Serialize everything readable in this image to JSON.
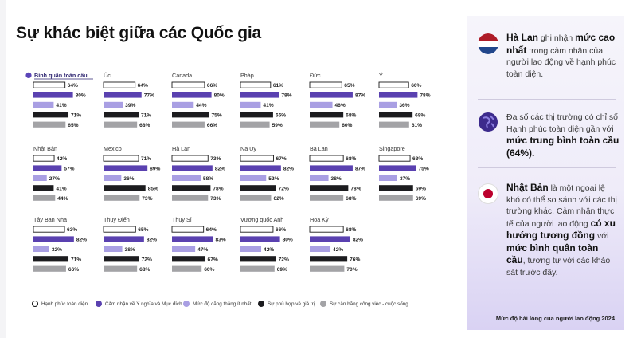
{
  "title": "Sự khác biệt giữa các Quốc gia",
  "series_colors": [
    "#ffffff",
    "#5a41b0",
    "#a99fe3",
    "#1c1c1f",
    "#a3a3a6"
  ],
  "legend": [
    {
      "label": "Hạnh phúc toàn diện"
    },
    {
      "label": "Cảm nhận về Ý nghĩa và Mục đích"
    },
    {
      "label": "Mức độ căng thẳng ít nhất"
    },
    {
      "label": "Sự phù hợp về giá trị"
    },
    {
      "label": "Sự cân bằng công việc - cuộc sống"
    }
  ],
  "chart_data": {
    "type": "bar",
    "orientation": "horizontal",
    "layout": "small multiples, 6 per row",
    "xlim": [
      0,
      100
    ],
    "series": [
      "Hạnh phúc toàn diện",
      "Cảm nhận về Ý nghĩa và Mục đích",
      "Mức độ căng thẳng ít nhất",
      "Sự phù hợp về giá trị",
      "Sự cân bằng công việc - cuộc sống"
    ],
    "panels": [
      {
        "country": "Bình quân toàn cầu",
        "values": [
          64,
          80,
          41,
          71,
          65
        ],
        "labels": [
          "64%",
          "80%",
          "41%",
          "71%",
          "65%"
        ],
        "highlight": true
      },
      {
        "country": "Úc",
        "values": [
          64,
          77,
          39,
          71,
          68
        ],
        "labels": [
          "64%",
          "77%",
          "39%",
          "71%",
          "68%"
        ]
      },
      {
        "country": "Canada",
        "values": [
          66,
          80,
          44,
          75,
          66
        ],
        "labels": [
          "66%",
          "80%",
          "44%",
          "75%",
          "66%"
        ]
      },
      {
        "country": "Pháp",
        "values": [
          61,
          78,
          41,
          66,
          59
        ],
        "labels": [
          "61%",
          "78%",
          "41%",
          "66%",
          "59%"
        ]
      },
      {
        "country": "Đức",
        "values": [
          65,
          87,
          46,
          68,
          60
        ],
        "labels": [
          "65%",
          "87%",
          "46%",
          "68%",
          "60%"
        ]
      },
      {
        "country": "Ý",
        "values": [
          60,
          78,
          36,
          68,
          61
        ],
        "labels": [
          "60%",
          "78%",
          "36%",
          "68%",
          "61%"
        ]
      },
      {
        "country": "Nhật Bản",
        "values": [
          42,
          57,
          27,
          41,
          44
        ],
        "labels": [
          "42%",
          "57%",
          "27%",
          "41%",
          "44%"
        ]
      },
      {
        "country": "Mexico",
        "values": [
          71,
          89,
          36,
          85,
          73
        ],
        "labels": [
          "71%",
          "89%",
          "36%",
          "85%",
          "73%"
        ]
      },
      {
        "country": "Hà Lan",
        "values": [
          73,
          82,
          58,
          78,
          73
        ],
        "labels": [
          "73%",
          "82%",
          "58%",
          "78%",
          "73%"
        ]
      },
      {
        "country": "Na Uy",
        "values": [
          67,
          82,
          52,
          72,
          62
        ],
        "labels": [
          "67%",
          "82%",
          "52%",
          "72%",
          "62%"
        ]
      },
      {
        "country": "Ba Lan",
        "values": [
          68,
          87,
          38,
          78,
          68
        ],
        "labels": [
          "68%",
          "87%",
          "38%",
          "78%",
          "68%"
        ]
      },
      {
        "country": "Singapore",
        "values": [
          63,
          75,
          37,
          69,
          69
        ],
        "labels": [
          "63%",
          "75%",
          "37%",
          "69%",
          "69%"
        ]
      },
      {
        "country": "Tây Ban Nha",
        "values": [
          63,
          82,
          32,
          71,
          66
        ],
        "labels": [
          "63%",
          "82%",
          "32%",
          "71%",
          "66%"
        ]
      },
      {
        "country": "Thụy Điển",
        "values": [
          65,
          82,
          38,
          72,
          68
        ],
        "labels": [
          "65%",
          "82%",
          "38%",
          "72%",
          "68%"
        ]
      },
      {
        "country": "Thụy Sĩ",
        "values": [
          64,
          83,
          47,
          67,
          60
        ],
        "labels": [
          "64%",
          "83%",
          "47%",
          "67%",
          "60%"
        ]
      },
      {
        "country": "Vương quốc Anh",
        "values": [
          66,
          80,
          42,
          72,
          69
        ],
        "labels": [
          "66%",
          "80%",
          "42%",
          "72%",
          "69%"
        ]
      },
      {
        "country": "Hoa Kỳ",
        "values": [
          68,
          82,
          42,
          76,
          70
        ],
        "labels": [
          "68%",
          "82%",
          "42%",
          "76%",
          "70%"
        ]
      }
    ]
  },
  "panel": {
    "items": [
      {
        "icon": "netherlands-flag-icon",
        "text": [
          {
            "t": "Hà Lan",
            "b": true
          },
          {
            "t": " ghi nhận ",
            "b": false
          },
          {
            "t": "mức cao nhất",
            "b": true
          },
          {
            "t": " trong cảm nhận của người lao động về hạnh phúc toàn diện.",
            "b": false
          }
        ]
      },
      {
        "icon": "globe-icon",
        "text": [
          {
            "t": "Đa số các thị trường có chỉ số Hạnh phúc toàn diện gần với ",
            "b": false
          },
          {
            "t": "mức trung bình toàn cầu (64%).",
            "b": true
          }
        ]
      },
      {
        "icon": "japan-flag-icon",
        "text": [
          {
            "t": "Nhật Bản",
            "b": true
          },
          {
            "t": " là một ngoại lệ khó có thể so sánh với các thị trường khác. Cảm nhận thực tế của người lao động ",
            "b": false
          },
          {
            "t": "có xu hướng tương đồng",
            "b": true
          },
          {
            "t": " với ",
            "b": false
          },
          {
            "t": "mức bình quân toàn cầu",
            "b": true
          },
          {
            "t": ", tương tự với các khảo sát trước đây.",
            "b": false
          }
        ]
      }
    ],
    "footer": "Mức độ hài lòng của người lao động 2024"
  }
}
